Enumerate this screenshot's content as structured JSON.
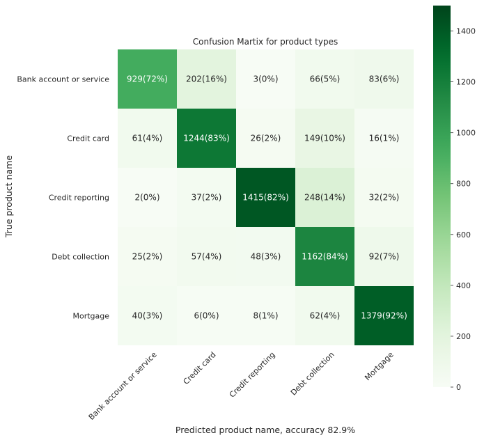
{
  "chart_data": {
    "type": "heatmap",
    "title": "Confusion Martix for product types",
    "xlabel": "Predicted product name, accuracy 82.9%",
    "ylabel": "True product name",
    "x_categories": [
      "Bank account or service",
      "Credit card",
      "Credit reporting",
      "Debt collection",
      "Mortgage"
    ],
    "y_categories": [
      "Bank account or service",
      "Credit card",
      "Credit reporting",
      "Debt collection",
      "Mortgage"
    ],
    "values": [
      [
        929,
        202,
        3,
        66,
        83
      ],
      [
        61,
        1244,
        26,
        149,
        16
      ],
      [
        2,
        37,
        1415,
        248,
        32
      ],
      [
        25,
        57,
        48,
        1162,
        92
      ],
      [
        40,
        6,
        8,
        62,
        1379
      ]
    ],
    "cell_labels": [
      [
        "929(72%)",
        "202(16%)",
        "3(0%)",
        "66(5%)",
        "83(6%)"
      ],
      [
        "61(4%)",
        "1244(83%)",
        "26(2%)",
        "149(10%)",
        "16(1%)"
      ],
      [
        "2(0%)",
        "37(2%)",
        "1415(82%)",
        "248(14%)",
        "32(2%)"
      ],
      [
        "25(2%)",
        "57(4%)",
        "48(3%)",
        "1162(84%)",
        "92(7%)"
      ],
      [
        "40(3%)",
        "6(0%)",
        "8(1%)",
        "62(4%)",
        "1379(92%)"
      ]
    ],
    "colorbar": {
      "min": 0,
      "max": 1500,
      "ticks": [
        0,
        200,
        400,
        600,
        800,
        1000,
        1200,
        1400
      ],
      "colormap": "Greens"
    }
  }
}
